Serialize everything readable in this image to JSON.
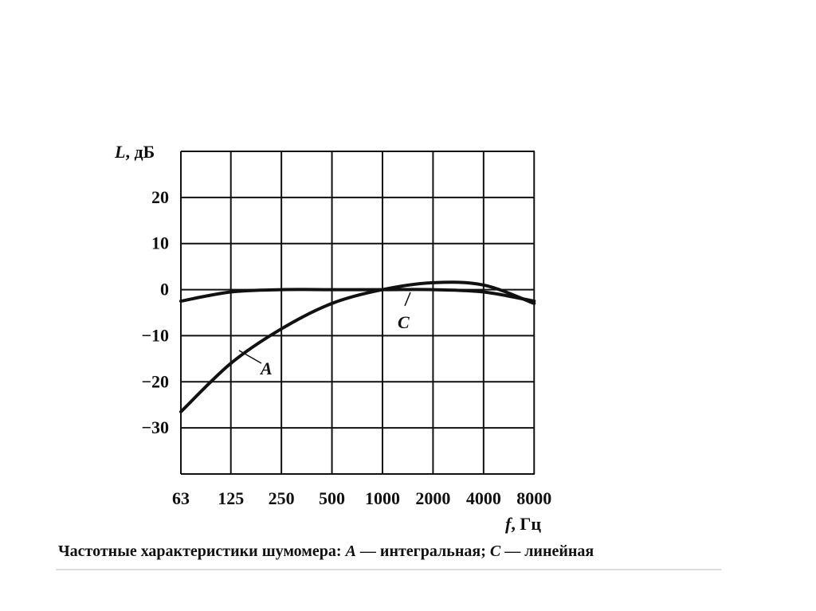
{
  "chart_data": {
    "type": "line",
    "x": [
      63,
      125,
      250,
      500,
      1000,
      2000,
      4000,
      8000
    ],
    "x_tick_labels": [
      "63",
      "125",
      "250",
      "500",
      "1000",
      "2000",
      "4000",
      "8000"
    ],
    "y_tick_labels": [
      "20",
      "10",
      "0",
      "−10",
      "−20",
      "−30"
    ],
    "y_ticks": [
      20,
      10,
      0,
      -10,
      -20,
      -30
    ],
    "xlim": [
      63,
      8000
    ],
    "ylim": [
      -40,
      30
    ],
    "x_scale": "octave",
    "grid": true,
    "ylabel_var": "L",
    "ylabel_unit": ", дБ",
    "xlabel_var": "f",
    "xlabel_unit": ", Гц",
    "series": [
      {
        "name": "A",
        "x": [
          63,
          125,
          250,
          500,
          1000,
          2000,
          4000,
          8000
        ],
        "values": [
          -26.5,
          -16,
          -8.5,
          -3,
          0,
          1.5,
          1,
          -3
        ]
      },
      {
        "name": "C",
        "x": [
          63,
          125,
          250,
          500,
          1000,
          2000,
          4000,
          8000
        ],
        "values": [
          -2.5,
          -0.5,
          0,
          0,
          0,
          0,
          -0.5,
          -2.5
        ]
      }
    ],
    "caption": {
      "prefix": "Частотные характеристики шумомера: ",
      "a_var": "A",
      "a_text": " — интегральная; ",
      "c_var": "C",
      "c_text": " — линейная"
    },
    "colors": {
      "curve": "#111111",
      "grid": "#111111",
      "text": "#111111"
    }
  }
}
